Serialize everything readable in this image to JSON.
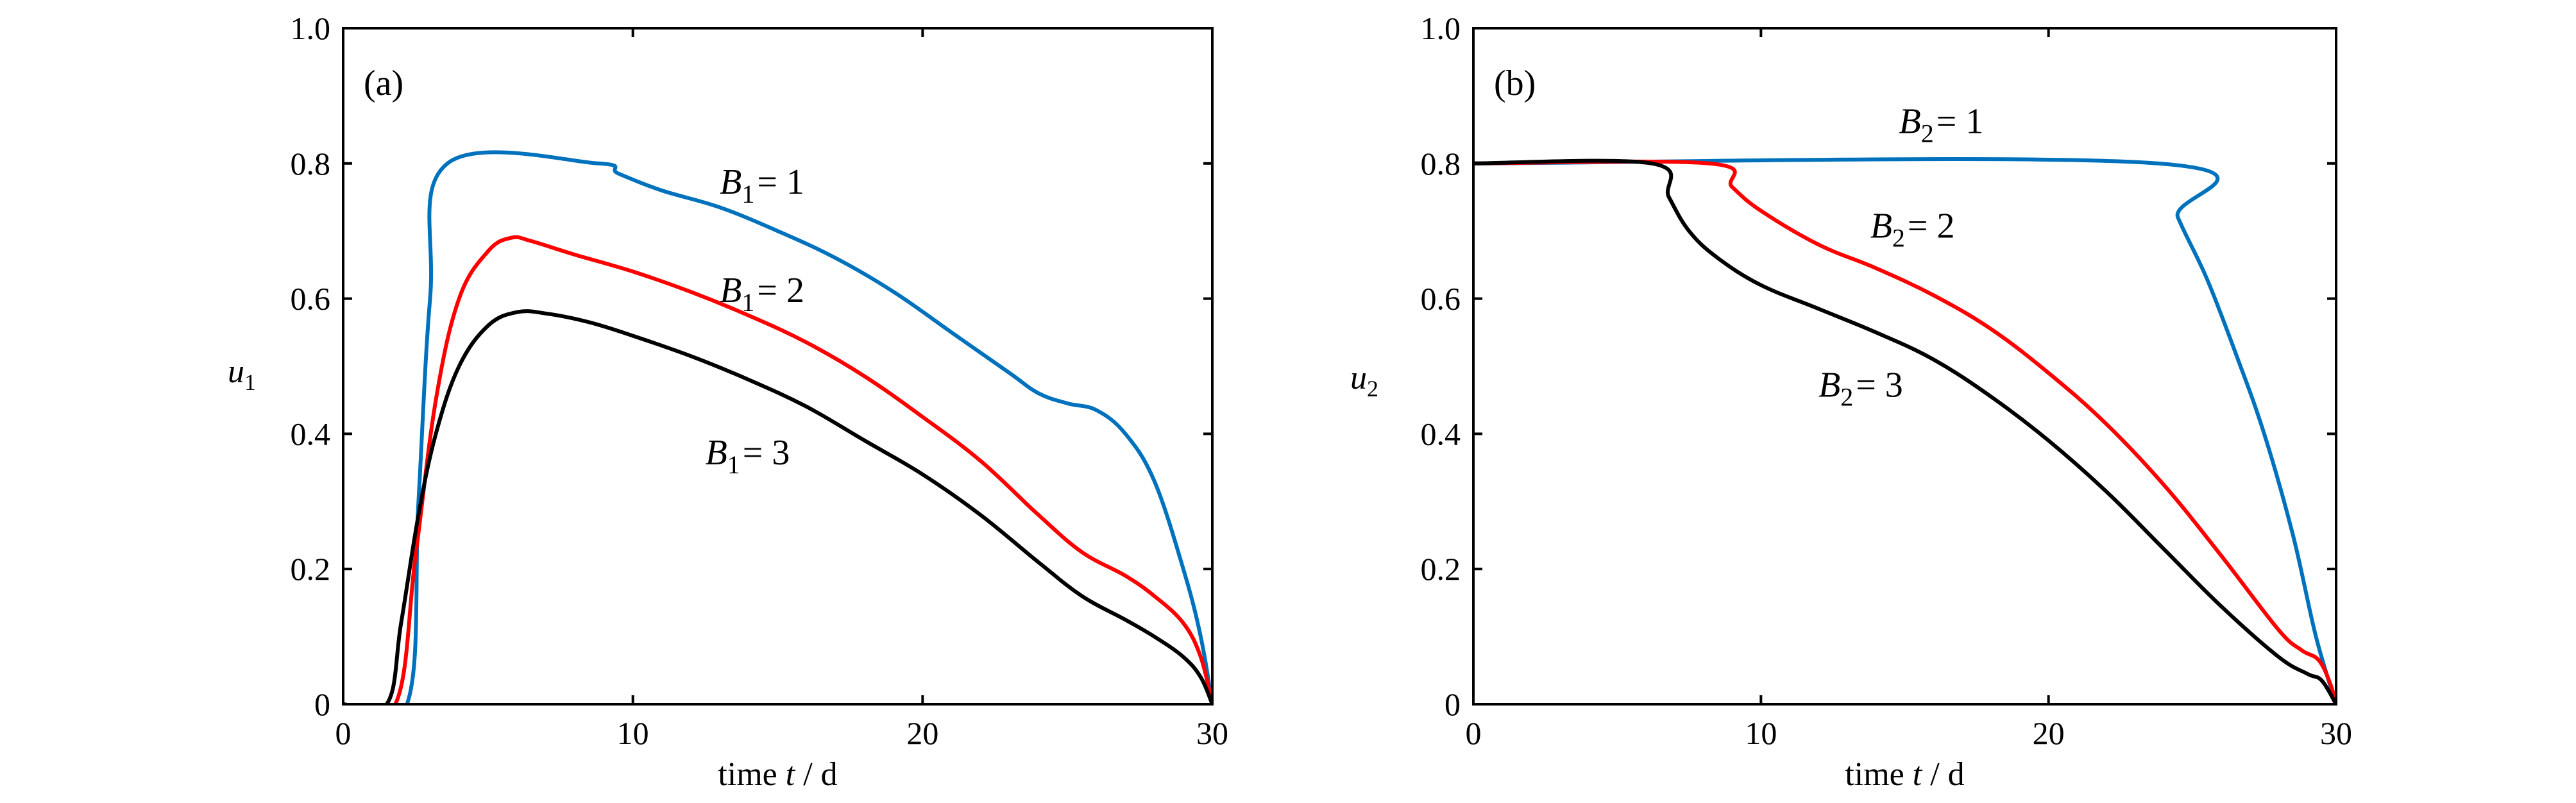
{
  "colors": {
    "blue": "#0072BD",
    "red": "#FF0000",
    "black": "#000000"
  },
  "chart_data": [
    {
      "type": "line",
      "panel_label": "(a)",
      "ylabel": "u",
      "ylabel_sub": "1",
      "xlabel_prefix": "time ",
      "xlabel_var": "t",
      "xlabel_suffix": " / d",
      "xlim": [
        0,
        30
      ],
      "ylim": [
        0,
        1
      ],
      "xticks": [
        0,
        10,
        20,
        30
      ],
      "xtick_labels": [
        "0",
        "10",
        "20",
        "30"
      ],
      "yticks": [
        0,
        0.2,
        0.4,
        0.6,
        0.8,
        1.0
      ],
      "ytick_labels": [
        "0",
        "0.2",
        "0.4",
        "0.6",
        "0.8",
        "1.0"
      ],
      "series": [
        {
          "name": "B1 = 1",
          "color": "#0072BD",
          "x": [
            0,
            2.2,
            2.6,
            3.0,
            3.6,
            8.8,
            9.5,
            11,
            13,
            15,
            17,
            19,
            21,
            23,
            24,
            25,
            26,
            27,
            28,
            29,
            29.6,
            30
          ],
          "y": [
            0,
            0,
            0.3,
            0.6,
            0.8,
            0.8,
            0.785,
            0.76,
            0.735,
            0.7,
            0.66,
            0.61,
            0.55,
            0.49,
            0.46,
            0.445,
            0.435,
            0.4,
            0.33,
            0.2,
            0.1,
            0
          ]
        },
        {
          "name": "B1 = 2",
          "color": "#FF0000",
          "x": [
            0,
            1.8,
            2.5,
            3.2,
            4.0,
            5.0,
            5.8,
            6.5,
            8,
            10,
            12,
            14,
            16,
            18,
            20,
            22,
            24,
            25.5,
            27,
            28,
            29,
            29.6,
            30
          ],
          "y": [
            0,
            0,
            0.22,
            0.45,
            0.6,
            0.67,
            0.69,
            0.685,
            0.665,
            0.64,
            0.61,
            0.575,
            0.535,
            0.485,
            0.425,
            0.36,
            0.28,
            0.225,
            0.19,
            0.16,
            0.12,
            0.07,
            0
          ]
        },
        {
          "name": "B1 = 3",
          "color": "#000000",
          "x": [
            0,
            1.5,
            2.0,
            2.6,
            3.2,
            4.0,
            5.0,
            6.0,
            7.0,
            8.5,
            10,
            12,
            14,
            16,
            18,
            20,
            22,
            24,
            25.5,
            27,
            28,
            29,
            29.6,
            30
          ],
          "y": [
            0,
            0,
            0.12,
            0.28,
            0.4,
            0.5,
            0.56,
            0.58,
            0.578,
            0.565,
            0.545,
            0.515,
            0.48,
            0.44,
            0.39,
            0.34,
            0.28,
            0.21,
            0.16,
            0.125,
            0.1,
            0.07,
            0.04,
            0
          ]
        }
      ],
      "annotations": [
        {
          "var": "B",
          "sub": "1",
          "text": "= 1",
          "x": 13.0,
          "y": 0.755
        },
        {
          "var": "B",
          "sub": "1",
          "text": "= 2",
          "x": 13.0,
          "y": 0.595
        },
        {
          "var": "B",
          "sub": "1",
          "text": "= 3",
          "x": 12.5,
          "y": 0.355
        }
      ]
    },
    {
      "type": "line",
      "panel_label": "(b)",
      "ylabel": "u",
      "ylabel_sub": "2",
      "xlabel_prefix": "time ",
      "xlabel_var": "t",
      "xlabel_suffix": " / d",
      "xlim": [
        0,
        30
      ],
      "ylim": [
        0,
        1
      ],
      "xticks": [
        0,
        10,
        20,
        30
      ],
      "xtick_labels": [
        "0",
        "10",
        "20",
        "30"
      ],
      "yticks": [
        0,
        0.2,
        0.4,
        0.6,
        0.8,
        1.0
      ],
      "ytick_labels": [
        "0",
        "0.2",
        "0.4",
        "0.6",
        "0.8",
        "1.0"
      ],
      "series": [
        {
          "name": "B2 = 1",
          "color": "#0072BD",
          "x": [
            0,
            23.8,
            24.5,
            25.5,
            26.5,
            27.5,
            28.5,
            29.3,
            30
          ],
          "y": [
            0.8,
            0.8,
            0.72,
            0.63,
            0.52,
            0.4,
            0.25,
            0.1,
            0
          ]
        },
        {
          "name": "B2 = 2",
          "color": "#FF0000",
          "x": [
            0,
            8.2,
            9.0,
            10,
            12,
            14,
            16,
            18,
            20,
            22,
            24,
            26,
            28,
            28.8,
            29.4,
            29.8,
            30
          ],
          "y": [
            0.8,
            0.8,
            0.765,
            0.73,
            0.68,
            0.645,
            0.605,
            0.555,
            0.49,
            0.415,
            0.325,
            0.22,
            0.11,
            0.08,
            0.065,
            0.03,
            0
          ]
        },
        {
          "name": "B2 = 3",
          "color": "#000000",
          "x": [
            0,
            6.2,
            6.8,
            7.5,
            8.5,
            10,
            12,
            14,
            16,
            18,
            20,
            22,
            24,
            26,
            28,
            29.0,
            29.5,
            30
          ],
          "y": [
            0.8,
            0.8,
            0.75,
            0.7,
            0.66,
            0.62,
            0.585,
            0.55,
            0.51,
            0.455,
            0.39,
            0.315,
            0.23,
            0.145,
            0.07,
            0.045,
            0.035,
            0
          ]
        }
      ],
      "annotations": [
        {
          "var": "B",
          "sub": "2",
          "text": "= 1",
          "x": 14.8,
          "y": 0.845
        },
        {
          "var": "B",
          "sub": "2",
          "text": "= 2",
          "x": 13.8,
          "y": 0.69
        },
        {
          "var": "B",
          "sub": "2",
          "text": "= 3",
          "x": 12.0,
          "y": 0.455
        }
      ]
    }
  ]
}
